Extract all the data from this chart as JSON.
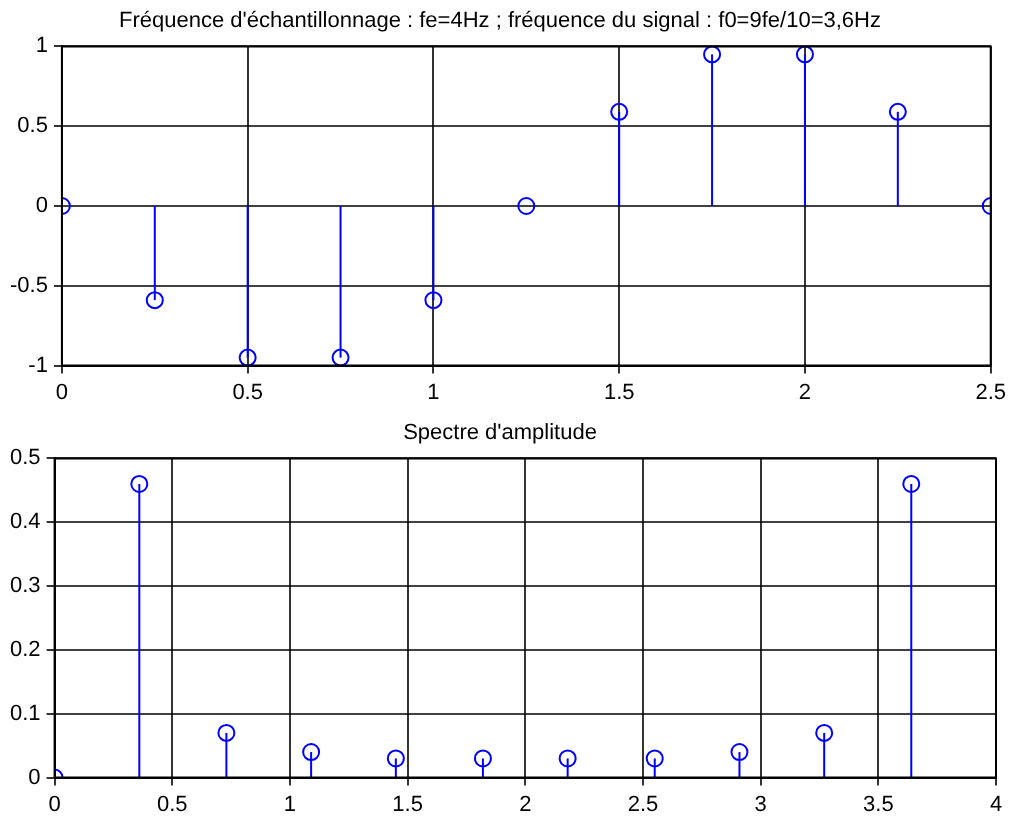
{
  "chart_data": [
    {
      "type": "lollipop",
      "title": "Fréquence d'échantillonnage : fe=4Hz ; fréquence du signal : f0=9fe/10=3,6Hz",
      "x": [
        0,
        0.25,
        0.5,
        0.75,
        1,
        1.25,
        1.5,
        1.75,
        2,
        2.25,
        2.5
      ],
      "series": [
        {
          "color": "#0000ff",
          "values": [
            0,
            -0.59,
            -0.95,
            -0.95,
            -0.59,
            0,
            0.59,
            0.95,
            0.95,
            0.59,
            0
          ]
        }
      ],
      "xlim": [
        0,
        2.5
      ],
      "xticks": [
        0,
        0.5,
        1,
        1.5,
        2,
        2.5
      ],
      "ylim": [
        -1,
        1
      ],
      "yticks": [
        -1,
        -0.5,
        0,
        0.5,
        1
      ],
      "grid": true,
      "marker": "circle",
      "legend": false
    },
    {
      "type": "lollipop",
      "title": "Spectre d'amplitude",
      "x": [
        0,
        0.36,
        0.73,
        1.09,
        1.45,
        1.82,
        2.18,
        2.55,
        2.91,
        3.27,
        3.64
      ],
      "series": [
        {
          "color": "#0000ff",
          "values": [
            0,
            0.46,
            0.07,
            0.04,
            0.03,
            0.03,
            0.03,
            0.03,
            0.04,
            0.07,
            0.46
          ]
        }
      ],
      "xlim": [
        0,
        4
      ],
      "xticks": [
        0,
        0.5,
        1,
        1.5,
        2,
        2.5,
        3,
        3.5,
        4
      ],
      "ylim": [
        0,
        0.5
      ],
      "yticks": [
        0,
        0.1,
        0.2,
        0.3,
        0.4,
        0.5
      ],
      "grid": true,
      "marker": "circle",
      "legend": false
    }
  ]
}
